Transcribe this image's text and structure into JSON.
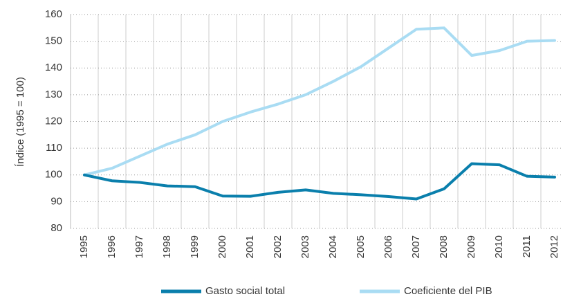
{
  "chart_data": {
    "type": "line",
    "y_label": "Índice (1995 = 100)",
    "categories": [
      "1995",
      "1996",
      "1997",
      "1998",
      "1999",
      "2000",
      "2001",
      "2002",
      "2003",
      "2004",
      "2005",
      "2006",
      "2007",
      "2008",
      "2009",
      "2010",
      "2011",
      "2012"
    ],
    "series": [
      {
        "name": "Gasto social total",
        "color": "#0a7fac",
        "values": [
          100,
          97.8,
          97.2,
          95.9,
          95.6,
          92.1,
          92.0,
          93.5,
          94.4,
          93.1,
          92.6,
          91.9,
          91.0,
          94.8,
          104.2,
          103.8,
          99.5,
          99.2
        ]
      },
      {
        "name": "Coeficiente del PIB",
        "color": "#a9dcf3",
        "values": [
          100,
          102.5,
          107,
          111.5,
          115,
          120,
          123.5,
          126.5,
          130,
          135,
          140.5,
          147.5,
          154.5,
          155,
          144.7,
          146.5,
          150,
          150.3
        ]
      }
    ],
    "ylim": [
      80,
      160
    ],
    "yticks": [
      80,
      90,
      100,
      110,
      120,
      130,
      140,
      150,
      160
    ],
    "grid": true
  }
}
